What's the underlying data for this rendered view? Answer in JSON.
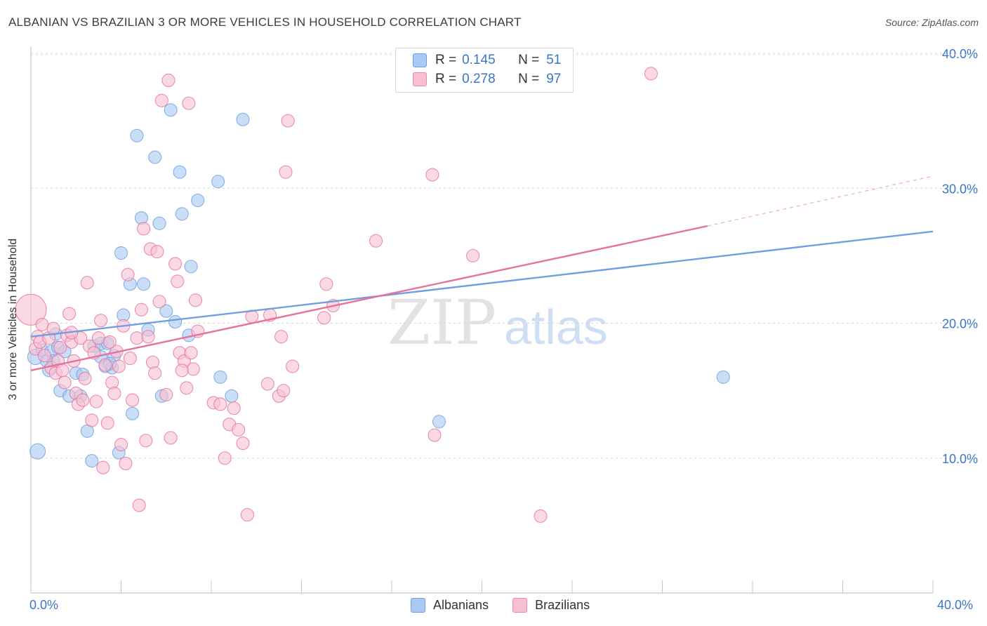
{
  "header": {
    "title": "ALBANIAN VS BRAZILIAN 3 OR MORE VEHICLES IN HOUSEHOLD CORRELATION CHART",
    "source": "Source: ZipAtlas.com"
  },
  "watermark": {
    "zip": "ZIP",
    "atlas": "atlas"
  },
  "legend": {
    "rows": [
      {
        "r_label": "R =",
        "r_value": "0.145",
        "n_label": "N =",
        "n_value": "51",
        "color": "#a9c8f2",
        "border": "#6f9fe0"
      },
      {
        "r_label": "R =",
        "r_value": "0.278",
        "n_label": "N =",
        "n_value": "97",
        "color": "#f8bfd2",
        "border": "#e98aab"
      }
    ]
  },
  "bottom_legend": [
    {
      "label": "Albanians",
      "color": "#a9c8f2",
      "border": "#6f9fe0"
    },
    {
      "label": "Brazilians",
      "color": "#f8bfd2",
      "border": "#e98aab"
    }
  ],
  "chart_data": {
    "type": "scatter",
    "title": "ALBANIAN VS BRAZILIAN 3 OR MORE VEHICLES IN HOUSEHOLD CORRELATION CHART",
    "xlabel": "",
    "ylabel": "3 or more Vehicles in Household",
    "xlim": [
      0,
      40
    ],
    "ylim": [
      0,
      40
    ],
    "x_tick_labels": [
      "0.0%",
      "40.0%"
    ],
    "y_ticks": [
      10,
      20,
      30,
      40
    ],
    "y_tick_labels": [
      "10.0%",
      "20.0%",
      "30.0%",
      "40.0%"
    ],
    "grid": true,
    "legend_position": "top-center",
    "series": [
      {
        "name": "Albanians",
        "color": "#6f9fe0",
        "fill": "#a9c8f2",
        "trend": {
          "x": [
            0,
            40
          ],
          "y": [
            19.0,
            26.8
          ]
        },
        "points": [
          [
            0.2,
            17.5
          ],
          [
            0.5,
            18.0
          ],
          [
            0.7,
            17.2
          ],
          [
            0.8,
            16.5
          ],
          [
            0.9,
            17.9
          ],
          [
            1.1,
            19.2
          ],
          [
            1.2,
            18.2
          ],
          [
            1.3,
            15.0
          ],
          [
            1.7,
            14.6
          ],
          [
            2.0,
            16.3
          ],
          [
            2.2,
            14.6
          ],
          [
            2.5,
            12.0
          ],
          [
            2.7,
            9.8
          ],
          [
            2.8,
            18.3
          ],
          [
            3.1,
            18.5
          ],
          [
            3.1,
            17.5
          ],
          [
            3.3,
            16.8
          ],
          [
            3.4,
            18.5
          ],
          [
            3.6,
            16.7
          ],
          [
            3.7,
            17.6
          ],
          [
            3.9,
            10.4
          ],
          [
            4.0,
            25.2
          ],
          [
            4.1,
            20.6
          ],
          [
            4.4,
            22.9
          ],
          [
            4.5,
            13.3
          ],
          [
            4.7,
            33.9
          ],
          [
            4.9,
            27.8
          ],
          [
            5.0,
            22.9
          ],
          [
            5.2,
            19.5
          ],
          [
            5.5,
            32.3
          ],
          [
            5.7,
            27.4
          ],
          [
            5.8,
            14.6
          ],
          [
            6.0,
            20.9
          ],
          [
            6.2,
            35.8
          ],
          [
            6.4,
            20.1
          ],
          [
            6.6,
            31.2
          ],
          [
            6.7,
            28.1
          ],
          [
            7.1,
            24.2
          ],
          [
            7.4,
            29.1
          ],
          [
            8.3,
            30.5
          ],
          [
            8.4,
            16.0
          ],
          [
            8.9,
            14.6
          ],
          [
            9.4,
            35.1
          ],
          [
            18.1,
            12.7
          ],
          [
            30.7,
            16.0
          ],
          [
            0.3,
            10.5
          ],
          [
            1.5,
            17.9
          ],
          [
            2.3,
            16.2
          ],
          [
            3.5,
            17.0
          ],
          [
            7.0,
            19.1
          ],
          [
            1.0,
            17.2
          ]
        ]
      },
      {
        "name": "Brazilians",
        "color": "#e5739c",
        "fill": "#f8bfd2",
        "trend": {
          "x": [
            0,
            30.0
          ],
          "y": [
            16.5,
            27.2
          ]
        },
        "trend_dashed": {
          "x": [
            30.0,
            40
          ],
          "y": [
            27.2,
            30.9
          ]
        },
        "points": [
          [
            0.0,
            21.0
          ],
          [
            0.2,
            18.1
          ],
          [
            0.3,
            19.0
          ],
          [
            0.4,
            18.6
          ],
          [
            0.5,
            19.9
          ],
          [
            0.6,
            17.6
          ],
          [
            0.8,
            18.9
          ],
          [
            0.9,
            16.7
          ],
          [
            1.0,
            19.6
          ],
          [
            1.1,
            16.3
          ],
          [
            1.2,
            17.2
          ],
          [
            1.3,
            18.2
          ],
          [
            1.4,
            16.5
          ],
          [
            1.5,
            15.6
          ],
          [
            1.6,
            19.1
          ],
          [
            1.7,
            20.7
          ],
          [
            1.8,
            18.6
          ],
          [
            1.9,
            17.2
          ],
          [
            2.0,
            14.8
          ],
          [
            2.1,
            14.0
          ],
          [
            2.2,
            18.9
          ],
          [
            2.3,
            14.3
          ],
          [
            2.5,
            23.0
          ],
          [
            2.6,
            18.3
          ],
          [
            2.7,
            12.8
          ],
          [
            2.8,
            17.8
          ],
          [
            2.9,
            14.2
          ],
          [
            3.0,
            18.9
          ],
          [
            3.1,
            20.2
          ],
          [
            3.2,
            9.3
          ],
          [
            3.3,
            16.9
          ],
          [
            3.4,
            12.6
          ],
          [
            3.6,
            15.6
          ],
          [
            3.7,
            14.8
          ],
          [
            3.8,
            17.9
          ],
          [
            3.9,
            16.8
          ],
          [
            4.0,
            11.0
          ],
          [
            4.1,
            19.8
          ],
          [
            4.2,
            9.6
          ],
          [
            4.3,
            23.6
          ],
          [
            4.4,
            17.4
          ],
          [
            4.5,
            14.3
          ],
          [
            4.7,
            18.9
          ],
          [
            4.8,
            6.5
          ],
          [
            4.9,
            21.0
          ],
          [
            5.0,
            27.0
          ],
          [
            5.1,
            11.3
          ],
          [
            5.2,
            19.0
          ],
          [
            5.3,
            25.5
          ],
          [
            5.4,
            17.1
          ],
          [
            5.5,
            16.3
          ],
          [
            5.6,
            25.3
          ],
          [
            5.7,
            21.6
          ],
          [
            5.8,
            36.5
          ],
          [
            6.0,
            14.7
          ],
          [
            6.1,
            38.0
          ],
          [
            6.2,
            11.5
          ],
          [
            6.4,
            24.4
          ],
          [
            6.5,
            23.1
          ],
          [
            6.6,
            17.8
          ],
          [
            6.8,
            17.2
          ],
          [
            6.9,
            15.2
          ],
          [
            7.0,
            36.3
          ],
          [
            7.1,
            17.8
          ],
          [
            7.2,
            16.6
          ],
          [
            7.3,
            21.7
          ],
          [
            7.4,
            19.4
          ],
          [
            8.1,
            14.1
          ],
          [
            8.4,
            14.0
          ],
          [
            8.6,
            10.0
          ],
          [
            8.8,
            12.5
          ],
          [
            9.0,
            13.7
          ],
          [
            9.2,
            12.1
          ],
          [
            9.4,
            11.1
          ],
          [
            9.6,
            5.8
          ],
          [
            9.8,
            20.5
          ],
          [
            10.5,
            15.5
          ],
          [
            10.6,
            20.6
          ],
          [
            11.0,
            14.6
          ],
          [
            11.1,
            19.0
          ],
          [
            11.2,
            15.0
          ],
          [
            11.3,
            31.2
          ],
          [
            11.4,
            35.0
          ],
          [
            11.6,
            16.8
          ],
          [
            13.0,
            20.4
          ],
          [
            13.1,
            22.9
          ],
          [
            13.4,
            21.3
          ],
          [
            15.3,
            26.1
          ],
          [
            17.8,
            31.0
          ],
          [
            17.9,
            11.7
          ],
          [
            19.6,
            25.0
          ],
          [
            22.6,
            5.7
          ],
          [
            27.5,
            38.5
          ],
          [
            3.5,
            18.6
          ],
          [
            2.4,
            15.9
          ],
          [
            1.8,
            19.3
          ],
          [
            6.7,
            16.5
          ]
        ]
      }
    ]
  }
}
